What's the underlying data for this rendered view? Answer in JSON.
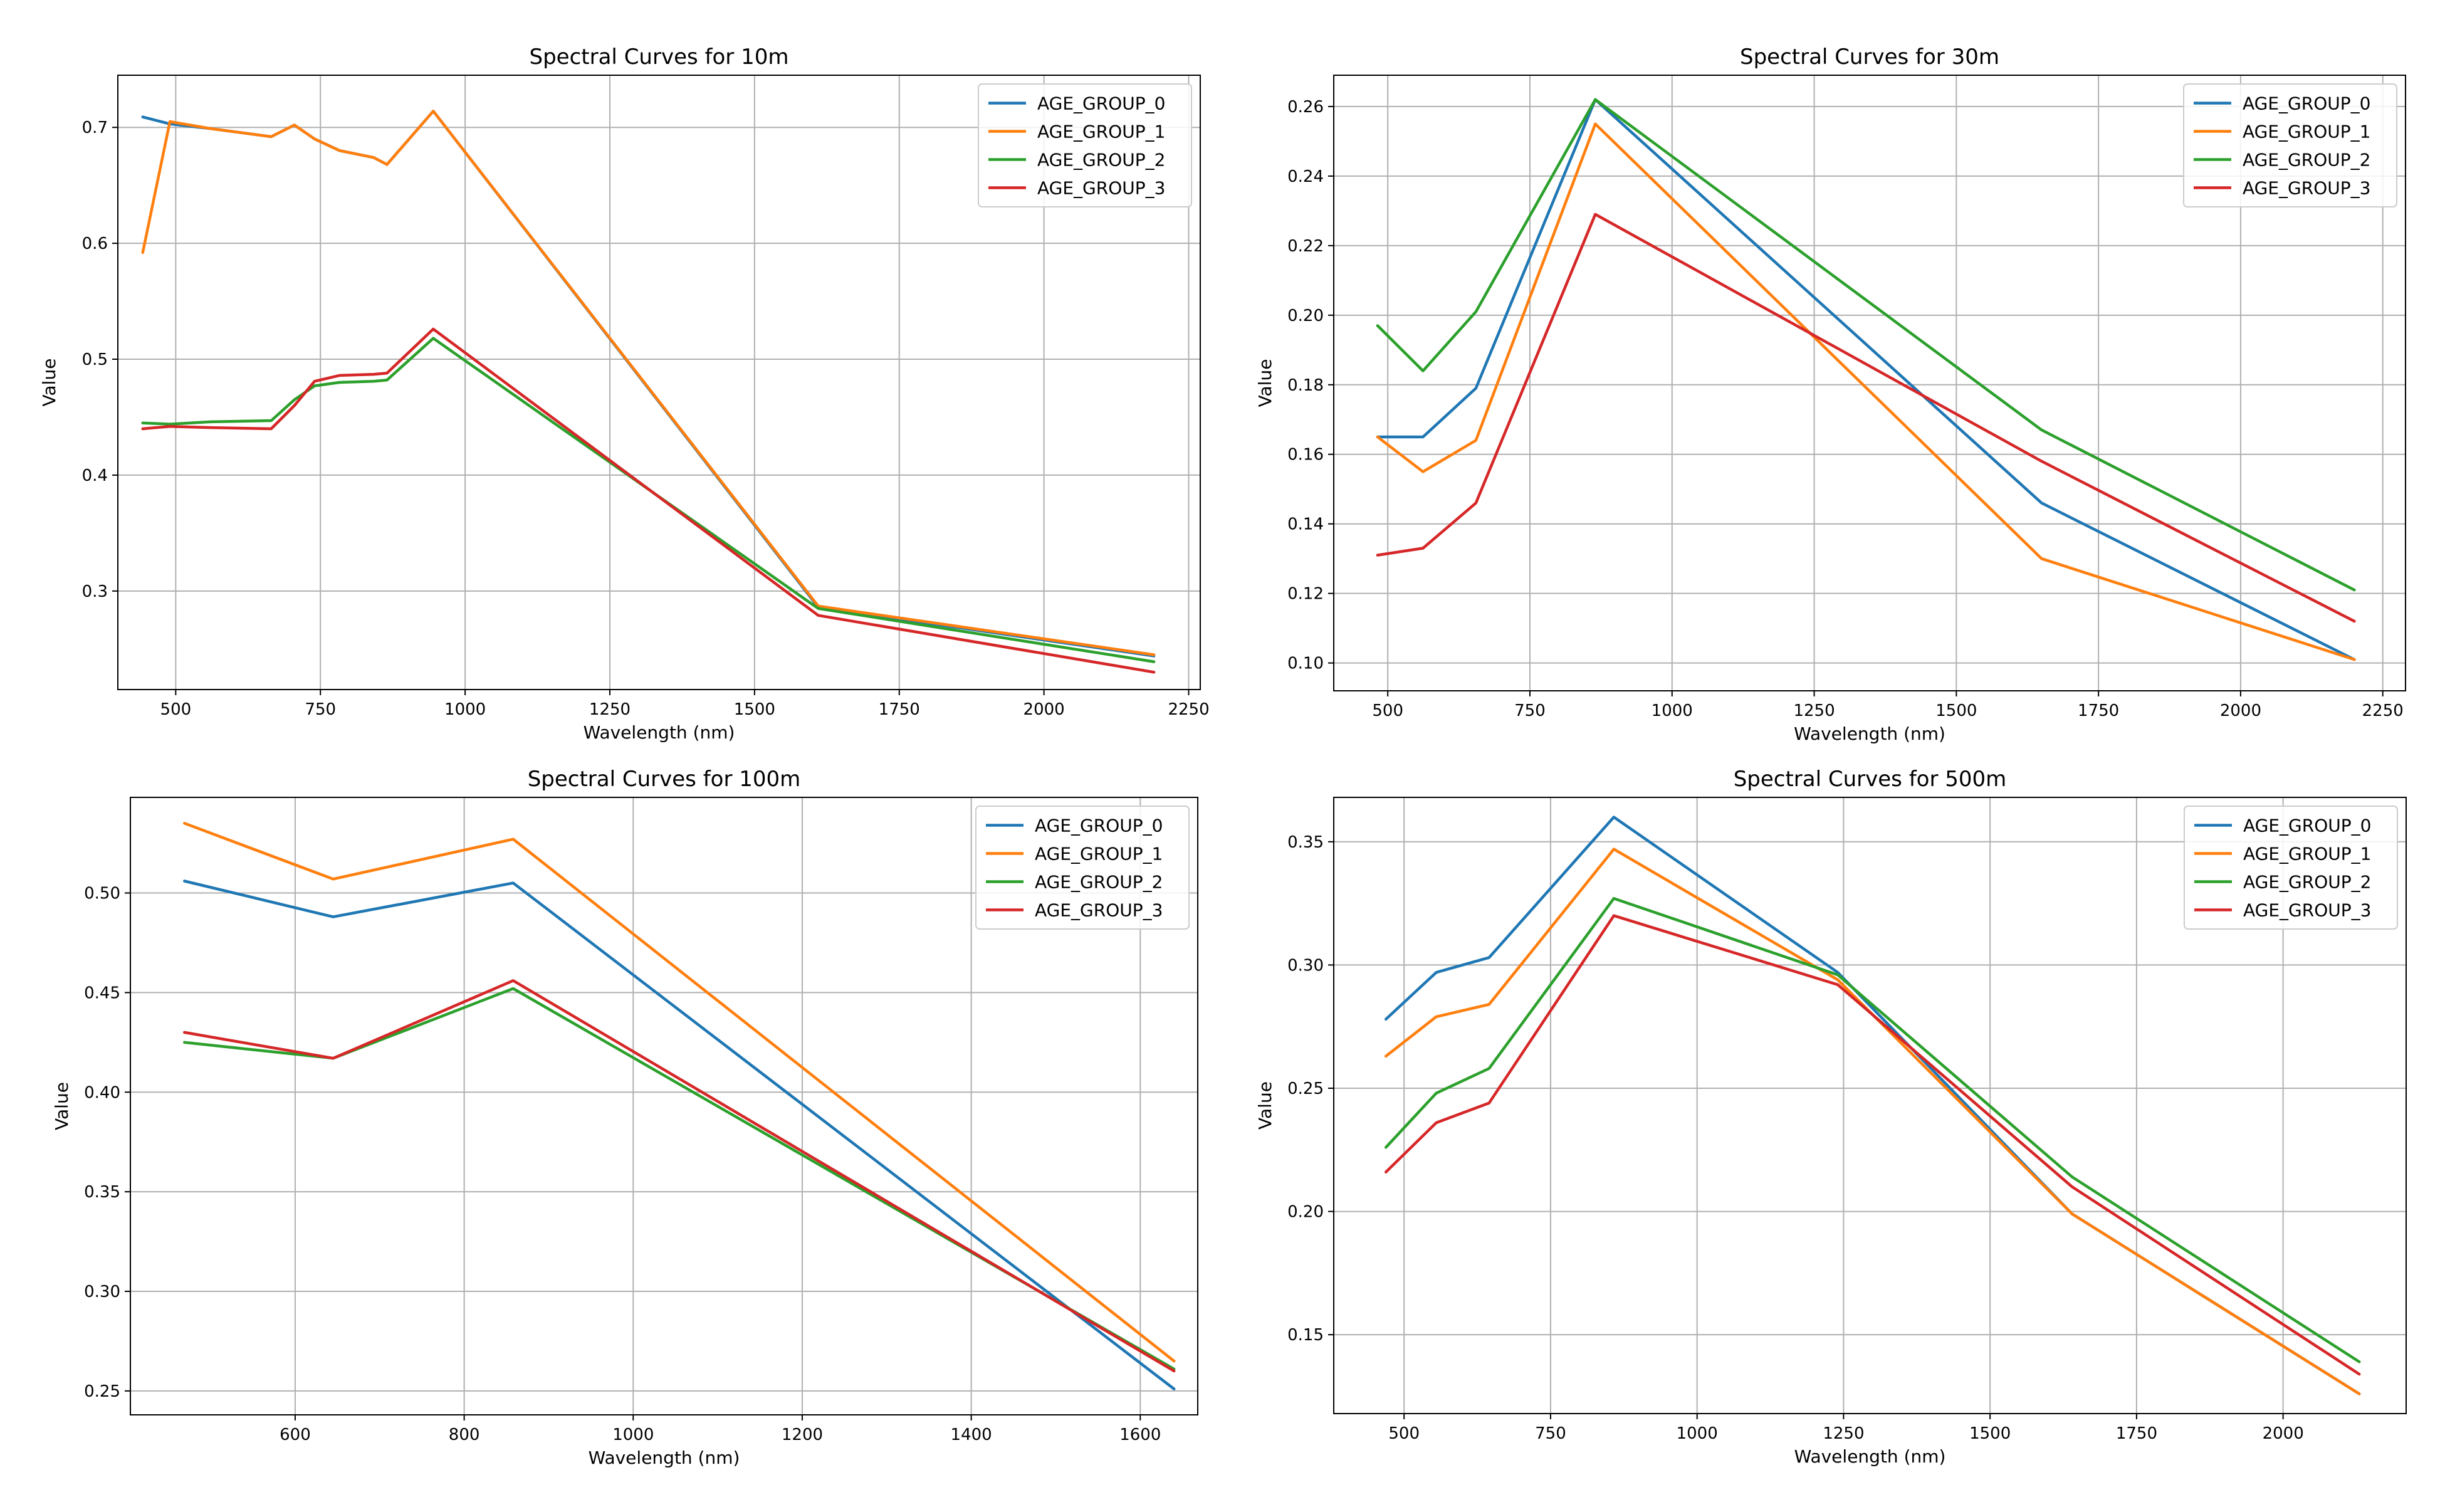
{
  "colors": {
    "AGE_GROUP_0": "#1f77b4",
    "AGE_GROUP_1": "#ff7f0e",
    "AGE_GROUP_2": "#2ca02c",
    "AGE_GROUP_3": "#d62728"
  },
  "chart_data": [
    {
      "type": "line",
      "title": "Spectral Curves for 10m",
      "xlabel": "Wavelength (nm)",
      "ylabel": "Value",
      "xlim": [
        400,
        2270
      ],
      "ylim": [
        0.215,
        0.745
      ],
      "xticks": [
        500,
        750,
        1000,
        1250,
        1500,
        1750,
        2000,
        2250
      ],
      "yticks": [
        0.3,
        0.4,
        0.5,
        0.6,
        0.7
      ],
      "ytick_decimals": 1,
      "grid": true,
      "legend_position": "top-right",
      "series": [
        {
          "name": "AGE_GROUP_0",
          "x": [
            443,
            490,
            560,
            665,
            705,
            740,
            783,
            842,
            865,
            945,
            1610,
            2190
          ],
          "y": [
            0.709,
            0.703,
            0.699,
            0.692,
            0.702,
            0.69,
            0.68,
            0.674,
            0.668,
            0.714,
            0.286,
            0.244
          ]
        },
        {
          "name": "AGE_GROUP_1",
          "x": [
            443,
            490,
            560,
            665,
            705,
            740,
            783,
            842,
            865,
            945,
            1610,
            2190
          ],
          "y": [
            0.592,
            0.705,
            0.699,
            0.692,
            0.702,
            0.69,
            0.68,
            0.674,
            0.668,
            0.714,
            0.287,
            0.245
          ]
        },
        {
          "name": "AGE_GROUP_2",
          "x": [
            443,
            490,
            560,
            665,
            705,
            740,
            783,
            842,
            865,
            945,
            1610,
            2190
          ],
          "y": [
            0.445,
            0.444,
            0.446,
            0.447,
            0.465,
            0.477,
            0.48,
            0.481,
            0.482,
            0.518,
            0.285,
            0.239
          ]
        },
        {
          "name": "AGE_GROUP_3",
          "x": [
            443,
            490,
            560,
            665,
            705,
            740,
            783,
            842,
            865,
            945,
            1610,
            2190
          ],
          "y": [
            0.44,
            0.442,
            0.441,
            0.44,
            0.46,
            0.481,
            0.486,
            0.487,
            0.488,
            0.526,
            0.279,
            0.23
          ]
        }
      ]
    },
    {
      "type": "line",
      "title": "Spectral Curves for 30m",
      "xlabel": "Wavelength (nm)",
      "ylabel": "Value",
      "xlim": [
        405,
        2290
      ],
      "ylim": [
        0.092,
        0.269
      ],
      "xticks": [
        500,
        750,
        1000,
        1250,
        1500,
        1750,
        2000,
        2250
      ],
      "yticks": [
        0.1,
        0.12,
        0.14,
        0.16,
        0.18,
        0.2,
        0.22,
        0.24,
        0.26
      ],
      "ytick_decimals": 2,
      "grid": true,
      "legend_position": "top-right",
      "series": [
        {
          "name": "AGE_GROUP_0",
          "x": [
            482,
            562,
            655,
            865,
            1650,
            2200
          ],
          "y": [
            0.165,
            0.165,
            0.179,
            0.262,
            0.146,
            0.101
          ]
        },
        {
          "name": "AGE_GROUP_1",
          "x": [
            482,
            562,
            655,
            865,
            1650,
            2200
          ],
          "y": [
            0.165,
            0.155,
            0.164,
            0.255,
            0.13,
            0.101
          ]
        },
        {
          "name": "AGE_GROUP_2",
          "x": [
            482,
            562,
            655,
            865,
            1650,
            2200
          ],
          "y": [
            0.197,
            0.184,
            0.201,
            0.262,
            0.167,
            0.121
          ]
        },
        {
          "name": "AGE_GROUP_3",
          "x": [
            482,
            562,
            655,
            865,
            1650,
            2200
          ],
          "y": [
            0.131,
            0.133,
            0.146,
            0.229,
            0.158,
            0.112
          ]
        }
      ]
    },
    {
      "type": "line",
      "title": "Spectral Curves for 100m",
      "xlabel": "Wavelength (nm)",
      "ylabel": "Value",
      "xlim": [
        405,
        1668
      ],
      "ylim": [
        0.238,
        0.548
      ],
      "xticks": [
        600,
        800,
        1000,
        1200,
        1400,
        1600
      ],
      "yticks": [
        0.25,
        0.3,
        0.35,
        0.4,
        0.45,
        0.5
      ],
      "ytick_decimals": 2,
      "grid": true,
      "legend_position": "top-right",
      "series": [
        {
          "name": "AGE_GROUP_0",
          "x": [
            469,
            645,
            858,
            1640
          ],
          "y": [
            0.506,
            0.488,
            0.505,
            0.251
          ]
        },
        {
          "name": "AGE_GROUP_1",
          "x": [
            469,
            645,
            858,
            1640
          ],
          "y": [
            0.535,
            0.507,
            0.527,
            0.265
          ]
        },
        {
          "name": "AGE_GROUP_2",
          "x": [
            469,
            645,
            858,
            1640
          ],
          "y": [
            0.425,
            0.417,
            0.452,
            0.261
          ]
        },
        {
          "name": "AGE_GROUP_3",
          "x": [
            469,
            645,
            858,
            1640
          ],
          "y": [
            0.43,
            0.417,
            0.456,
            0.26
          ]
        }
      ]
    },
    {
      "type": "line",
      "title": "Spectral Curves for 500m",
      "xlabel": "Wavelength (nm)",
      "ylabel": "Value",
      "xlim": [
        380,
        2210
      ],
      "ylim": [
        0.118,
        0.368
      ],
      "xticks": [
        500,
        750,
        1000,
        1250,
        1500,
        1750,
        2000
      ],
      "yticks": [
        0.15,
        0.2,
        0.25,
        0.3,
        0.35
      ],
      "ytick_decimals": 2,
      "grid": true,
      "legend_position": "top-right",
      "series": [
        {
          "name": "AGE_GROUP_0",
          "x": [
            469,
            555,
            645,
            858,
            1240,
            1640,
            2130
          ],
          "y": [
            0.278,
            0.297,
            0.303,
            0.36,
            0.297,
            0.199,
            0.126
          ]
        },
        {
          "name": "AGE_GROUP_1",
          "x": [
            469,
            555,
            645,
            858,
            1240,
            1640,
            2130
          ],
          "y": [
            0.263,
            0.279,
            0.284,
            0.347,
            0.294,
            0.199,
            0.126
          ]
        },
        {
          "name": "AGE_GROUP_2",
          "x": [
            469,
            555,
            645,
            858,
            1240,
            1640,
            2130
          ],
          "y": [
            0.226,
            0.248,
            0.258,
            0.327,
            0.296,
            0.214,
            0.139
          ]
        },
        {
          "name": "AGE_GROUP_3",
          "x": [
            469,
            555,
            645,
            858,
            1240,
            1640,
            2130
          ],
          "y": [
            0.216,
            0.236,
            0.244,
            0.32,
            0.292,
            0.21,
            0.134
          ]
        }
      ]
    }
  ]
}
